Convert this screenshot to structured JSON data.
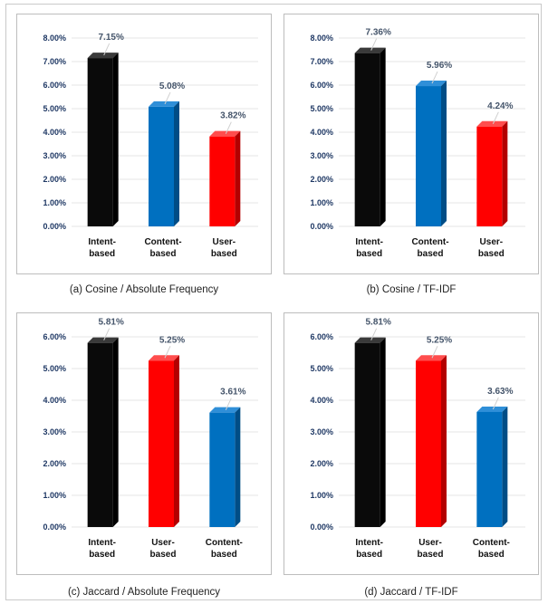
{
  "colors": {
    "black": "#0a0a0a",
    "blue": "#0070c0",
    "red": "#ff0000"
  },
  "chart_data": [
    {
      "type": "bar",
      "caption": "(a) Cosine / Absolute Frequency",
      "categories": [
        "Intent-based",
        "Content-based",
        "User-based"
      ],
      "values": [
        7.15,
        5.08,
        3.82
      ],
      "data_labels": [
        "7.15%",
        "5.08%",
        "3.82%"
      ],
      "bar_colors": [
        "black",
        "blue",
        "red"
      ],
      "ylim": [
        0,
        8
      ],
      "yticks": [
        "0.00%",
        "1.00%",
        "2.00%",
        "3.00%",
        "4.00%",
        "5.00%",
        "6.00%",
        "7.00%",
        "8.00%"
      ],
      "grid": true
    },
    {
      "type": "bar",
      "caption": "(b) Cosine / TF-IDF",
      "categories": [
        "Intent-based",
        "Content-based",
        "User-based"
      ],
      "values": [
        7.36,
        5.96,
        4.24
      ],
      "data_labels": [
        "7.36%",
        "5.96%",
        "4.24%"
      ],
      "bar_colors": [
        "black",
        "blue",
        "red"
      ],
      "ylim": [
        0,
        8
      ],
      "yticks": [
        "0.00%",
        "1.00%",
        "2.00%",
        "3.00%",
        "4.00%",
        "5.00%",
        "6.00%",
        "7.00%",
        "8.00%"
      ],
      "grid": true
    },
    {
      "type": "bar",
      "caption": "(c) Jaccard / Absolute Frequency",
      "categories": [
        "Intent-based",
        "User-based",
        "Content-based"
      ],
      "values": [
        5.81,
        5.25,
        3.61
      ],
      "data_labels": [
        "5.81%",
        "5.25%",
        "3.61%"
      ],
      "bar_colors": [
        "black",
        "red",
        "blue"
      ],
      "ylim": [
        0,
        6
      ],
      "yticks": [
        "0.00%",
        "1.00%",
        "2.00%",
        "3.00%",
        "4.00%",
        "5.00%",
        "6.00%"
      ],
      "grid": true
    },
    {
      "type": "bar",
      "caption": "(d) Jaccard / TF-IDF",
      "categories": [
        "Intent-based",
        "User-based",
        "Content-based"
      ],
      "values": [
        5.81,
        5.25,
        3.63
      ],
      "data_labels": [
        "5.81%",
        "5.25%",
        "3.63%"
      ],
      "bar_colors": [
        "black",
        "red",
        "blue"
      ],
      "ylim": [
        0,
        6
      ],
      "yticks": [
        "0.00%",
        "1.00%",
        "2.00%",
        "3.00%",
        "4.00%",
        "5.00%",
        "6.00%"
      ],
      "grid": true
    }
  ]
}
